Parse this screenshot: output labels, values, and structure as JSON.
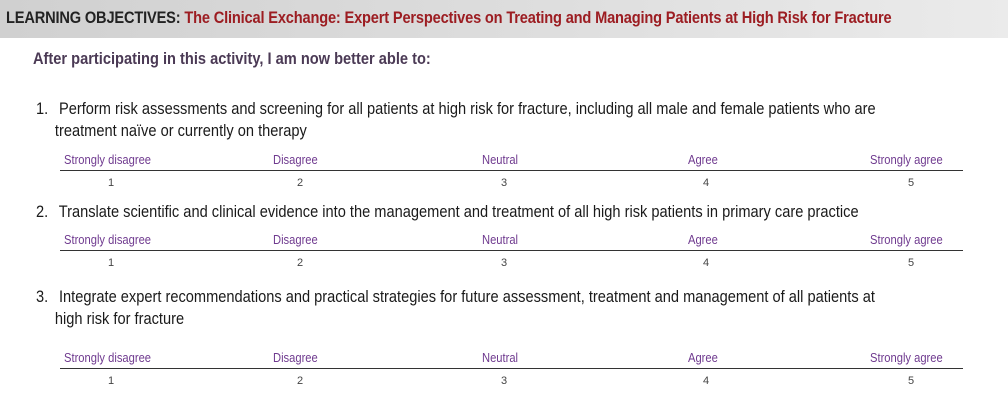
{
  "header": {
    "label": "LEARNING OBJECTIVES:",
    "title": "The Clinical Exchange: Expert Perspectives on Treating and Managing Patients at High Risk for Fracture"
  },
  "intro": "After participating in this activity, I am now better able to:",
  "scale": {
    "labels": [
      "Strongly disagree",
      "Disagree",
      "Neutral",
      "Agree",
      "Strongly agree"
    ],
    "values": [
      "1",
      "2",
      "3",
      "4",
      "5"
    ]
  },
  "objectives": [
    {
      "number": "1.",
      "line1": "Perform risk assessments and screening for all patients at high risk for fracture, including all male and female patients who are",
      "line2": "treatment naïve or currently on therapy"
    },
    {
      "number": "2.",
      "line1": "Translate scientific and clinical evidence into the management and treatment of all high risk patients in primary care practice",
      "line2": ""
    },
    {
      "number": "3.",
      "line1": "Integrate expert recommendations and practical strategies for future assessment, treatment and management of all patients at",
      "line2": "high risk for fracture"
    }
  ]
}
